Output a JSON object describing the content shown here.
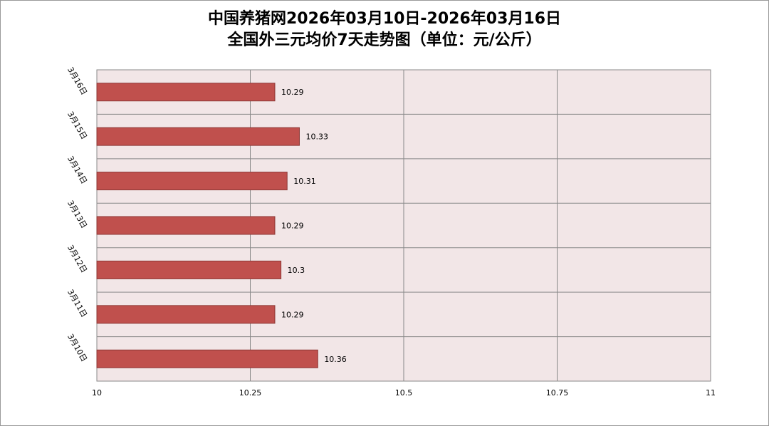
{
  "chart_data": {
    "type": "hbar",
    "title": "中国养猪网2026年03月10日-2026年03月16日",
    "subtitle": "全国外三元均价7天走势图（单位：元/公斤）",
    "categories": [
      "3月10日",
      "3月11日",
      "3月12日",
      "3月13日",
      "3月14日",
      "3月15日",
      "3月16日"
    ],
    "values": [
      10.36,
      10.29,
      10.3,
      10.29,
      10.31,
      10.33,
      10.29
    ],
    "color": "#c0504d",
    "xlim": [
      10,
      11
    ],
    "xticks": [
      10,
      10.25,
      10.5,
      10.75,
      11
    ],
    "grid": true
  }
}
